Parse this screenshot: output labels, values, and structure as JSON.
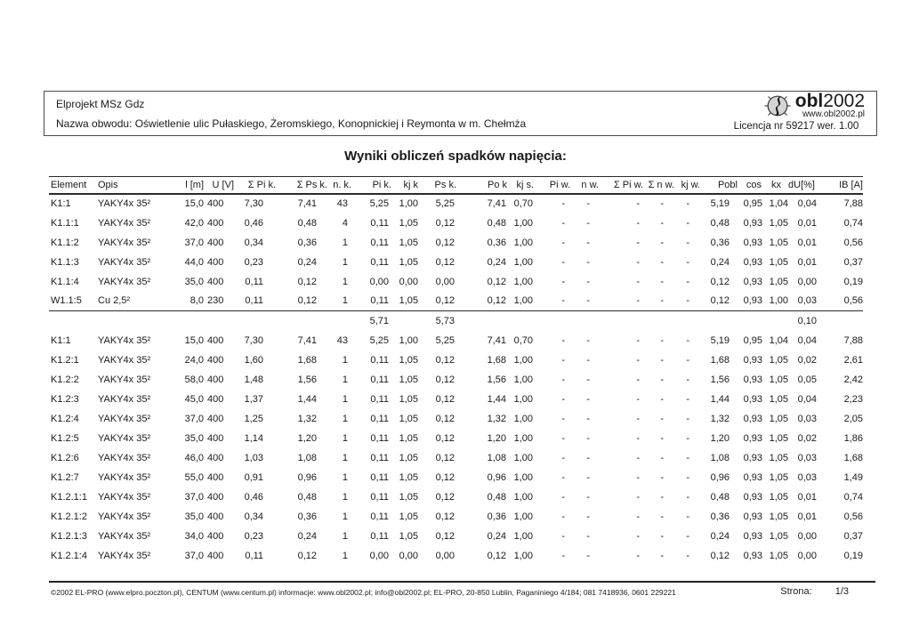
{
  "header": {
    "project": "Elprojekt MSz Gdz",
    "circuit": "Nazwa obwodu: Oświetlenie ulic Pułaskiego, Żeromskiego, Konopnickiej i Reymonta w m. Chełmża",
    "logo": {
      "brand_bold": "obl",
      "brand_year": "2002",
      "website": "www.obl2002.pl",
      "license": "Licencja nr 59217 wer. 1.00"
    }
  },
  "title": "Wyniki obliczeń spadków napięcia:",
  "table": {
    "columns": [
      "Element",
      "Opis",
      "l [m]",
      "U [V]",
      "Σ Pi k.",
      "Σ Ps k.",
      "n. k.",
      "Pi k.",
      "kj k",
      "Ps k.",
      "Po k",
      "kj s.",
      "Pi w.",
      "n w.",
      "Σ Pi w.",
      "Σ n w.",
      "kj w.",
      "Pobl",
      "cos",
      "kx",
      "dU[%]",
      "IB [A]"
    ],
    "sections": [
      {
        "rows": [
          [
            "K1:1",
            "YAKY4x 35²",
            "15,0",
            "400",
            "7,30",
            "7,41",
            "43",
            "5,25",
            "1,00",
            "5,25",
            "7,41",
            "0,70",
            "-",
            "-",
            "-",
            "-",
            "-",
            "5,19",
            "0,95",
            "1,04",
            "0,04",
            "7,88"
          ],
          [
            "K1.1:1",
            "YAKY4x 35²",
            "42,0",
            "400",
            "0,46",
            "0,48",
            "4",
            "0,11",
            "1,05",
            "0,12",
            "0,48",
            "1,00",
            "-",
            "-",
            "-",
            "-",
            "-",
            "0,48",
            "0,93",
            "1,05",
            "0,01",
            "0,74"
          ],
          [
            "K1.1:2",
            "YAKY4x 35²",
            "37,0",
            "400",
            "0,34",
            "0,36",
            "1",
            "0,11",
            "1,05",
            "0,12",
            "0,36",
            "1,00",
            "-",
            "-",
            "-",
            "-",
            "-",
            "0,36",
            "0,93",
            "1,05",
            "0,01",
            "0,56"
          ],
          [
            "K1.1:3",
            "YAKY4x 35²",
            "44,0",
            "400",
            "0,23",
            "0,24",
            "1",
            "0,11",
            "1,05",
            "0,12",
            "0,24",
            "1,00",
            "-",
            "-",
            "-",
            "-",
            "-",
            "0,24",
            "0,93",
            "1,05",
            "0,01",
            "0,37"
          ],
          [
            "K1.1:4",
            "YAKY4x 35²",
            "35,0",
            "400",
            "0,11",
            "0,12",
            "1",
            "0,00",
            "0,00",
            "0,00",
            "0,12",
            "1,00",
            "-",
            "-",
            "-",
            "-",
            "-",
            "0,12",
            "0,93",
            "1,05",
            "0,00",
            "0,19"
          ],
          [
            "W1.1:5",
            "Cu 2,5²",
            "8,0",
            "230",
            "0,11",
            "0,12",
            "1",
            "0,11",
            "1,05",
            "0,12",
            "0,12",
            "1,00",
            "-",
            "-",
            "-",
            "-",
            "-",
            "0,12",
            "0,93",
            "1,00",
            "0,03",
            "0,56"
          ]
        ],
        "subtotal": {
          "sum_pi_k": "5,71",
          "sum_ps_k": "5,73",
          "du_percent": "0,10"
        }
      },
      {
        "rows": [
          [
            "K1:1",
            "YAKY4x 35²",
            "15,0",
            "400",
            "7,30",
            "7,41",
            "43",
            "5,25",
            "1,00",
            "5,25",
            "7,41",
            "0,70",
            "-",
            "-",
            "-",
            "-",
            "-",
            "5,19",
            "0,95",
            "1,04",
            "0,04",
            "7,88"
          ],
          [
            "K1.2:1",
            "YAKY4x 35²",
            "24,0",
            "400",
            "1,60",
            "1,68",
            "1",
            "0,11",
            "1,05",
            "0,12",
            "1,68",
            "1,00",
            "-",
            "-",
            "-",
            "-",
            "-",
            "1,68",
            "0,93",
            "1,05",
            "0,02",
            "2,61"
          ],
          [
            "K1.2:2",
            "YAKY4x 35²",
            "58,0",
            "400",
            "1,48",
            "1,56",
            "1",
            "0,11",
            "1,05",
            "0,12",
            "1,56",
            "1,00",
            "-",
            "-",
            "-",
            "-",
            "-",
            "1,56",
            "0,93",
            "1,05",
            "0,05",
            "2,42"
          ],
          [
            "K1.2:3",
            "YAKY4x 35²",
            "45,0",
            "400",
            "1,37",
            "1,44",
            "1",
            "0,11",
            "1,05",
            "0,12",
            "1,44",
            "1,00",
            "-",
            "-",
            "-",
            "-",
            "-",
            "1,44",
            "0,93",
            "1,05",
            "0,04",
            "2,23"
          ],
          [
            "K1.2:4",
            "YAKY4x 35²",
            "37,0",
            "400",
            "1,25",
            "1,32",
            "1",
            "0,11",
            "1,05",
            "0,12",
            "1,32",
            "1,00",
            "-",
            "-",
            "-",
            "-",
            "-",
            "1,32",
            "0,93",
            "1,05",
            "0,03",
            "2,05"
          ],
          [
            "K1.2:5",
            "YAKY4x 35²",
            "35,0",
            "400",
            "1,14",
            "1,20",
            "1",
            "0,11",
            "1,05",
            "0,12",
            "1,20",
            "1,00",
            "-",
            "-",
            "-",
            "-",
            "-",
            "1,20",
            "0,93",
            "1,05",
            "0,02",
            "1,86"
          ],
          [
            "K1.2:6",
            "YAKY4x 35²",
            "46,0",
            "400",
            "1,03",
            "1,08",
            "1",
            "0,11",
            "1,05",
            "0,12",
            "1,08",
            "1,00",
            "-",
            "-",
            "-",
            "-",
            "-",
            "1,08",
            "0,93",
            "1,05",
            "0,03",
            "1,68"
          ],
          [
            "K1.2:7",
            "YAKY4x 35²",
            "55,0",
            "400",
            "0,91",
            "0,96",
            "1",
            "0,11",
            "1,05",
            "0,12",
            "0,96",
            "1,00",
            "-",
            "-",
            "-",
            "-",
            "-",
            "0,96",
            "0,93",
            "1,05",
            "0,03",
            "1,49"
          ],
          [
            "K1.2.1:1",
            "YAKY4x 35²",
            "37,0",
            "400",
            "0,46",
            "0,48",
            "1",
            "0,11",
            "1,05",
            "0,12",
            "0,48",
            "1,00",
            "-",
            "-",
            "-",
            "-",
            "-",
            "0,48",
            "0,93",
            "1,05",
            "0,01",
            "0,74"
          ],
          [
            "K1.2.1:2",
            "YAKY4x 35²",
            "35,0",
            "400",
            "0,34",
            "0,36",
            "1",
            "0,11",
            "1,05",
            "0,12",
            "0,36",
            "1,00",
            "-",
            "-",
            "-",
            "-",
            "-",
            "0,36",
            "0,93",
            "1,05",
            "0,01",
            "0,56"
          ],
          [
            "K1.2.1:3",
            "YAKY4x 35²",
            "34,0",
            "400",
            "0,23",
            "0,24",
            "1",
            "0,11",
            "1,05",
            "0,12",
            "0,24",
            "1,00",
            "-",
            "-",
            "-",
            "-",
            "-",
            "0,24",
            "0,93",
            "1,05",
            "0,00",
            "0,37"
          ],
          [
            "K1.2.1:4",
            "YAKY4x 35²",
            "37,0",
            "400",
            "0,11",
            "0,12",
            "1",
            "0,00",
            "0,00",
            "0,00",
            "0,12",
            "1,00",
            "-",
            "-",
            "-",
            "-",
            "-",
            "0,12",
            "0,93",
            "1,05",
            "0,00",
            "0,19"
          ]
        ]
      }
    ]
  },
  "footer": {
    "copyright": "©2002 EL-PRO (www.elpro.poczton.pl), CENTUM (www.centum.pl)   informacje: www.obl2002.pl; info@obl2002.pl; EL-PRO, 20-850 Lublin, Paganiniego 4/184; 081 7418936, 0601 229221",
    "page_label": "Strona:",
    "page_value": "1/3"
  }
}
